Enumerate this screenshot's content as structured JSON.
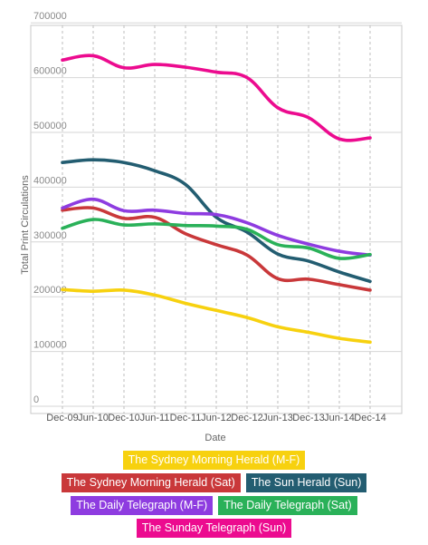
{
  "chart_data": {
    "type": "line",
    "title": "",
    "xlabel": "Date",
    "ylabel": "Total Print Circulations",
    "categories": [
      "Dec-09",
      "Jun-10",
      "Dec-10",
      "Jun-11",
      "Dec-11",
      "Jun-12",
      "Dec-12",
      "Jun-13",
      "Dec-13",
      "Jun-14",
      "Dec-14"
    ],
    "ylim": [
      0,
      700000
    ],
    "yticks": [
      "0",
      "100000",
      "200000",
      "300000",
      "400000",
      "500000",
      "600000",
      "700000"
    ],
    "grid": true,
    "legend_position": "bottom",
    "series": [
      {
        "name": "The Sydney Morning Herald (M-F)",
        "color": "#f7d10f",
        "values": [
          213000,
          210000,
          212000,
          203000,
          188000,
          175000,
          162000,
          145000,
          135000,
          124000,
          117000
        ]
      },
      {
        "name": "The Sydney Morning Herald (Sat)",
        "color": "#c9383a",
        "values": [
          358000,
          362000,
          343000,
          345000,
          315000,
          295000,
          276000,
          233000,
          232000,
          222000,
          212000
        ]
      },
      {
        "name": "The Sun Herald (Sun)",
        "color": "#235d71",
        "values": [
          445000,
          450000,
          445000,
          430000,
          405000,
          345000,
          318000,
          278000,
          265000,
          245000,
          228000
        ]
      },
      {
        "name": "The Daily Telegraph (M-F)",
        "color": "#8e3ce0",
        "values": [
          362000,
          378000,
          357000,
          358000,
          352000,
          350000,
          335000,
          312000,
          296000,
          283000,
          276000
        ]
      },
      {
        "name": "The Daily Telegraph (Sat)",
        "color": "#2ab159",
        "values": [
          325000,
          341000,
          331000,
          333000,
          330000,
          329000,
          323000,
          295000,
          289000,
          270000,
          277000
        ]
      },
      {
        "name": "The Sunday Telegraph (Sun)",
        "color": "#ec0b8f",
        "values": [
          632000,
          640000,
          618000,
          624000,
          619000,
          610000,
          600000,
          545000,
          527000,
          488000,
          490000
        ]
      }
    ]
  }
}
